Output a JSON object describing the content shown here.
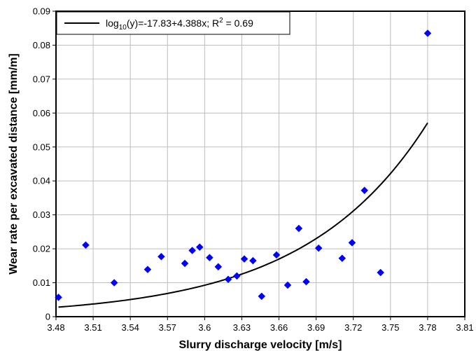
{
  "chart_data": {
    "type": "scatter",
    "xlabel": "Slurry discharge velocity [m/s]",
    "ylabel": "Wear rate per excavated distance [mm/m]",
    "xlim": [
      3.48,
      3.81
    ],
    "ylim": [
      0,
      0.09
    ],
    "x_ticks": [
      "3.48",
      "3.51",
      "3.54",
      "3.57",
      "3.6",
      "3.63",
      "3.66",
      "3.69",
      "3.72",
      "3.75",
      "3.78",
      "3.81"
    ],
    "y_ticks": [
      "0",
      "0.01",
      "0.02",
      "0.03",
      "0.04",
      "0.05",
      "0.06",
      "0.07",
      "0.08",
      "0.09"
    ],
    "grid": true,
    "legend_position": "top-left",
    "legend_parts": {
      "prefix": "log",
      "sub": "10",
      "middle": "(y)=-17.83+4.388x; R",
      "sup": "2",
      "suffix": " = 0.69"
    },
    "marker_color": "#0000ff",
    "line_color": "#000000",
    "series": [
      {
        "kind": "scatter",
        "points": [
          [
            3.482,
            0.0057
          ],
          [
            3.504,
            0.0211
          ],
          [
            3.527,
            0.01
          ],
          [
            3.554,
            0.0139
          ],
          [
            3.565,
            0.0177
          ],
          [
            3.584,
            0.0157
          ],
          [
            3.59,
            0.0195
          ],
          [
            3.596,
            0.0205
          ],
          [
            3.604,
            0.0174
          ],
          [
            3.611,
            0.0147
          ],
          [
            3.619,
            0.011
          ],
          [
            3.626,
            0.012
          ],
          [
            3.632,
            0.017
          ],
          [
            3.639,
            0.0165
          ],
          [
            3.646,
            0.006
          ],
          [
            3.658,
            0.0182
          ],
          [
            3.667,
            0.0093
          ],
          [
            3.676,
            0.026
          ],
          [
            3.682,
            0.0103
          ],
          [
            3.692,
            0.0202
          ],
          [
            3.711,
            0.0172
          ],
          [
            3.719,
            0.0218
          ],
          [
            3.729,
            0.0372
          ],
          [
            3.742,
            0.013
          ],
          [
            3.78,
            0.0835
          ]
        ]
      },
      {
        "kind": "fit",
        "a": -17.83,
        "b": 4.388,
        "x_range": [
          3.482,
          3.78
        ]
      }
    ]
  }
}
